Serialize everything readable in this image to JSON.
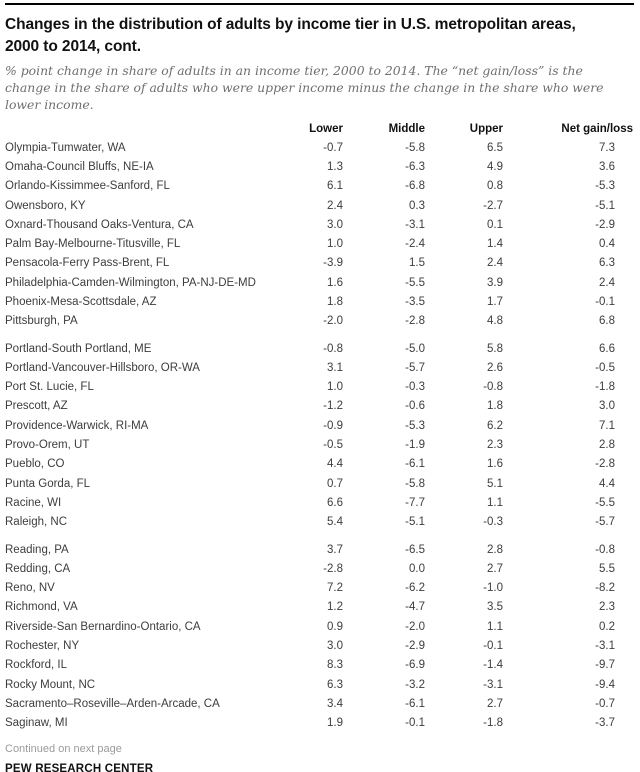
{
  "header": {
    "title_lines": [
      "Changes in the distribution of adults by income tier in U.S. metropolitan areas,",
      "2000 to 2014, cont."
    ],
    "subtitle": "% point change in share of adults in an income tier, 2000 to 2014. The “net gain/loss” is the change in the share of adults who were upper income minus the change in the share who were lower income."
  },
  "table": {
    "columns": [
      "Lower",
      "Middle",
      "Upper",
      "Net gain/loss"
    ],
    "groups": [
      [
        {
          "name": "Olympia-Tumwater, WA",
          "lower": "-0.7",
          "middle": "-5.8",
          "upper": "6.5",
          "net": "7.3"
        },
        {
          "name": "Omaha-Council Bluffs, NE-IA",
          "lower": "1.3",
          "middle": "-6.3",
          "upper": "4.9",
          "net": "3.6"
        },
        {
          "name": "Orlando-Kissimmee-Sanford, FL",
          "lower": "6.1",
          "middle": "-6.8",
          "upper": "0.8",
          "net": "-5.3"
        },
        {
          "name": "Owensboro, KY",
          "lower": "2.4",
          "middle": "0.3",
          "upper": "-2.7",
          "net": "-5.1"
        },
        {
          "name": "Oxnard-Thousand Oaks-Ventura, CA",
          "lower": "3.0",
          "middle": "-3.1",
          "upper": "0.1",
          "net": "-2.9"
        },
        {
          "name": "Palm Bay-Melbourne-Titusville, FL",
          "lower": "1.0",
          "middle": "-2.4",
          "upper": "1.4",
          "net": "0.4"
        },
        {
          "name": "Pensacola-Ferry Pass-Brent, FL",
          "lower": "-3.9",
          "middle": "1.5",
          "upper": "2.4",
          "net": "6.3"
        },
        {
          "name": "Philadelphia-Camden-Wilmington, PA-NJ-DE-MD",
          "lower": "1.6",
          "middle": "-5.5",
          "upper": "3.9",
          "net": "2.4"
        },
        {
          "name": "Phoenix-Mesa-Scottsdale, AZ",
          "lower": "1.8",
          "middle": "-3.5",
          "upper": "1.7",
          "net": "-0.1"
        },
        {
          "name": "Pittsburgh, PA",
          "lower": "-2.0",
          "middle": "-2.8",
          "upper": "4.8",
          "net": "6.8"
        }
      ],
      [
        {
          "name": "Portland-South Portland, ME",
          "lower": "-0.8",
          "middle": "-5.0",
          "upper": "5.8",
          "net": "6.6"
        },
        {
          "name": "Portland-Vancouver-Hillsboro, OR-WA",
          "lower": "3.1",
          "middle": "-5.7",
          "upper": "2.6",
          "net": "-0.5"
        },
        {
          "name": "Port St. Lucie, FL",
          "lower": "1.0",
          "middle": "-0.3",
          "upper": "-0.8",
          "net": "-1.8"
        },
        {
          "name": "Prescott, AZ",
          "lower": "-1.2",
          "middle": "-0.6",
          "upper": "1.8",
          "net": "3.0"
        },
        {
          "name": "Providence-Warwick, RI-MA",
          "lower": "-0.9",
          "middle": "-5.3",
          "upper": "6.2",
          "net": "7.1"
        },
        {
          "name": "Provo-Orem, UT",
          "lower": "-0.5",
          "middle": "-1.9",
          "upper": "2.3",
          "net": "2.8"
        },
        {
          "name": "Pueblo, CO",
          "lower": "4.4",
          "middle": "-6.1",
          "upper": "1.6",
          "net": "-2.8"
        },
        {
          "name": "Punta Gorda, FL",
          "lower": "0.7",
          "middle": "-5.8",
          "upper": "5.1",
          "net": "4.4"
        },
        {
          "name": "Racine, WI",
          "lower": "6.6",
          "middle": "-7.7",
          "upper": "1.1",
          "net": "-5.5"
        },
        {
          "name": "Raleigh, NC",
          "lower": "5.4",
          "middle": "-5.1",
          "upper": "-0.3",
          "net": "-5.7"
        }
      ],
      [
        {
          "name": "Reading, PA",
          "lower": "3.7",
          "middle": "-6.5",
          "upper": "2.8",
          "net": "-0.8"
        },
        {
          "name": "Redding, CA",
          "lower": "-2.8",
          "middle": "0.0",
          "upper": "2.7",
          "net": "5.5"
        },
        {
          "name": "Reno, NV",
          "lower": "7.2",
          "middle": "-6.2",
          "upper": "-1.0",
          "net": "-8.2"
        },
        {
          "name": "Richmond, VA",
          "lower": "1.2",
          "middle": "-4.7",
          "upper": "3.5",
          "net": "2.3"
        },
        {
          "name": "Riverside-San Bernardino-Ontario, CA",
          "lower": "0.9",
          "middle": "-2.0",
          "upper": "1.1",
          "net": "0.2"
        },
        {
          "name": "Rochester, NY",
          "lower": "3.0",
          "middle": "-2.9",
          "upper": "-0.1",
          "net": "-3.1"
        },
        {
          "name": "Rockford, IL",
          "lower": "8.3",
          "middle": "-6.9",
          "upper": "-1.4",
          "net": "-9.7"
        },
        {
          "name": "Rocky Mount, NC",
          "lower": "6.3",
          "middle": "-3.2",
          "upper": "-3.1",
          "net": "-9.4"
        },
        {
          "name": "Sacramento–Roseville–Arden-Arcade, CA",
          "lower": "3.4",
          "middle": "-6.1",
          "upper": "2.7",
          "net": "-0.7"
        },
        {
          "name": "Saginaw, MI",
          "lower": "1.9",
          "middle": "-0.1",
          "upper": "-1.8",
          "net": "-3.7"
        }
      ]
    ]
  },
  "footer": {
    "continued": "Continued on next page",
    "source": "PEW RESEARCH CENTER"
  },
  "colors": {
    "rule": "#000000",
    "title_text": "#111111",
    "subtitle_text": "#6e6e73",
    "body_text": "#3d3d3d",
    "muted_text": "#9b9b9b"
  }
}
